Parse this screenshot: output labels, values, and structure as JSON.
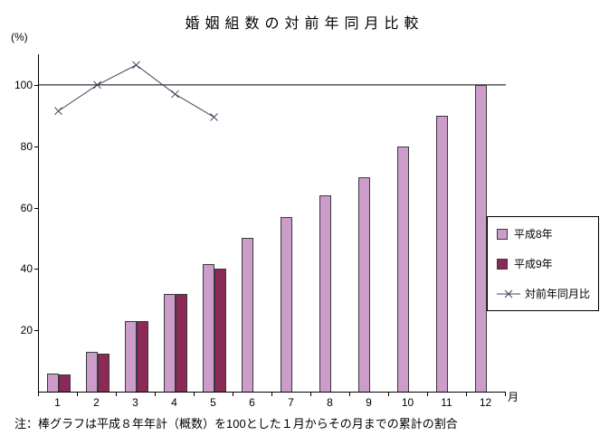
{
  "title": "婚姻組数の対前年同月比較",
  "note": "注：棒グラフは平成８年年計（概数）を100とした１月からその月までの累計の割合",
  "chart_data": {
    "type": "bar",
    "title": "婚姻組数の対前年同月比較",
    "xlabel": "月",
    "ylabel": "(%)",
    "categories": [
      1,
      2,
      3,
      4,
      5,
      6,
      7,
      8,
      9,
      10,
      11,
      12
    ],
    "yticks": [
      20,
      40,
      60,
      80,
      100
    ],
    "ylim": [
      0,
      110
    ],
    "reference_line": 100,
    "grid": false,
    "legend_position": "right",
    "series": [
      {
        "name": "平成8年",
        "type": "bar",
        "color": "#CC9CCB",
        "values": [
          6,
          13,
          23,
          32,
          41.5,
          50,
          57,
          64,
          70,
          80,
          90,
          100
        ]
      },
      {
        "name": "平成9年",
        "type": "bar",
        "color": "#8C2A57",
        "values": [
          5.5,
          12.5,
          23,
          32,
          40,
          null,
          null,
          null,
          null,
          null,
          null,
          null
        ]
      },
      {
        "name": "対前年同月比",
        "type": "line",
        "color": "#44445E",
        "values": [
          91.5,
          100,
          106.5,
          97,
          89.5,
          null,
          null,
          null,
          null,
          null,
          null,
          null
        ]
      }
    ]
  }
}
